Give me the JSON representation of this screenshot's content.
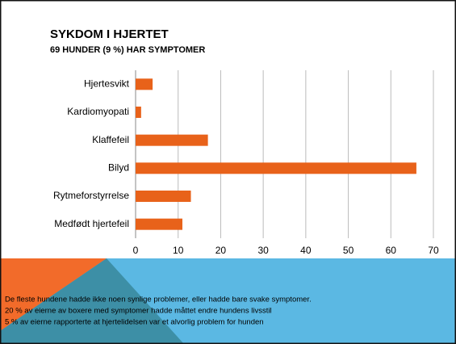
{
  "chart_data": {
    "type": "barh",
    "title": "SYKDOM I HJERTET",
    "subtitle": "69 HUNDER (9 %) HAR SYMPTOMER",
    "categories": [
      "Hjertesvikt",
      "Kardiomyopati",
      "Klaffefeil",
      "Bilyd",
      "Rytmeforstyrrelse",
      "Medfødt hjertefeil"
    ],
    "values": [
      4,
      1.3,
      17,
      66,
      13,
      11
    ],
    "color": "#e8621a",
    "xlim": [
      0,
      70
    ],
    "xticks": [
      0,
      10,
      20,
      30,
      40,
      50,
      60,
      70
    ],
    "grid": true
  },
  "footer": {
    "lines": [
      "De fleste hundene hadde ikke noen synlige problemer, eller hadde bare svake symptomer.",
      "20 % av eierne av boxere med symptomer hadde måttet endre hundens livsstil",
      "5 % av eierne rapporterte at hjertelidelsen var et alvorlig problem for hunden"
    ]
  }
}
